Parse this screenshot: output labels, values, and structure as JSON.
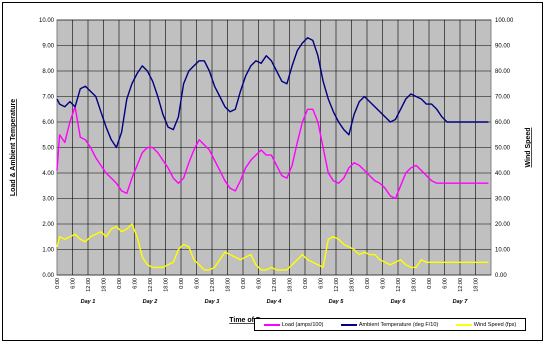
{
  "chart_data": {
    "type": "line",
    "xlabel": "Time of Day",
    "ylabel_left": "Load & Ambient Temperature",
    "ylabel_right": "Wind Speed",
    "ylim_left": [
      0,
      10
    ],
    "ylim_right": [
      0,
      100
    ],
    "left_ticks": [
      "0.00",
      "1.00",
      "2.00",
      "3.00",
      "4.00",
      "5.00",
      "6.00",
      "7.00",
      "8.00",
      "9.00",
      "10.00"
    ],
    "right_ticks": [
      "0.00",
      "10.00",
      "20.00",
      "30.00",
      "40.00",
      "50.00",
      "60.00",
      "70.00",
      "80.00",
      "90.00",
      "100.00"
    ],
    "x_ticks": [
      "0:00",
      "6:00",
      "12:00",
      "18:00",
      "0:00",
      "6:00",
      "12:00",
      "18:00",
      "0:00",
      "6:00",
      "12:00",
      "18:00",
      "0:00",
      "6:00",
      "12:00",
      "18:00",
      "0:00",
      "6:00",
      "12:00",
      "18:00",
      "0:00",
      "6:00",
      "12:00",
      "18:00",
      "0:00",
      "6:00",
      "12:00",
      "18:00"
    ],
    "day_labels": [
      "Day 1",
      "Day 2",
      "Day 3",
      "Day 4",
      "Day 5",
      "Day 6",
      "Day 7"
    ],
    "x_hours_range": [
      0,
      168
    ],
    "grid": true,
    "legend_position": "bottom-right",
    "colors": {
      "plot_bg": "#c0c0c0",
      "grid": "#000000",
      "load": "#ff00ff",
      "temp": "#000080",
      "wind": "#ffff00"
    },
    "series": [
      {
        "name": "Load (amps/100)",
        "axis": "left",
        "color": "#ff00ff",
        "x": [
          0,
          1,
          3,
          5,
          7,
          9,
          11,
          13,
          15,
          17,
          19,
          21,
          23,
          25,
          27,
          29,
          31,
          33,
          35,
          37,
          39,
          41,
          43,
          45,
          47,
          49,
          51,
          53,
          55,
          57,
          59,
          61,
          63,
          65,
          67,
          69,
          71,
          73,
          75,
          77,
          79,
          81,
          83,
          85,
          87,
          89,
          91,
          93,
          95,
          97,
          99,
          101,
          103,
          105,
          107,
          109,
          111,
          113,
          115,
          117,
          119,
          121,
          123,
          125,
          127,
          129,
          131,
          133,
          135,
          137,
          139,
          141,
          143,
          145,
          147,
          149,
          151,
          153,
          155,
          157,
          159,
          161,
          163,
          165,
          167
        ],
        "values": [
          4.1,
          5.5,
          5.2,
          6.0,
          6.6,
          5.4,
          5.3,
          5.0,
          4.6,
          4.3,
          4.0,
          3.8,
          3.6,
          3.3,
          3.2,
          3.8,
          4.3,
          4.8,
          5.0,
          5.0,
          4.8,
          4.5,
          4.2,
          3.8,
          3.6,
          3.8,
          4.4,
          4.9,
          5.3,
          5.1,
          4.9,
          4.5,
          4.1,
          3.7,
          3.4,
          3.3,
          3.7,
          4.2,
          4.5,
          4.7,
          4.9,
          4.7,
          4.7,
          4.3,
          3.9,
          3.8,
          4.3,
          5.2,
          6.0,
          6.5,
          6.5,
          6.0,
          5.0,
          4.0,
          3.7,
          3.6,
          3.8,
          4.2,
          4.4,
          4.3,
          4.1,
          3.9,
          3.7,
          3.6,
          3.4,
          3.1,
          3.0,
          3.5,
          4.0,
          4.2,
          4.3,
          4.1,
          3.9,
          3.7,
          3.6,
          3.6,
          3.6,
          3.6,
          3.6,
          3.6,
          3.6,
          3.6,
          3.6,
          3.6,
          3.6
        ]
      },
      {
        "name": "Ambient Temperature (deg F/10)",
        "axis": "left",
        "color": "#000080",
        "x": [
          0,
          1,
          3,
          5,
          7,
          9,
          11,
          13,
          15,
          17,
          19,
          21,
          23,
          25,
          27,
          29,
          31,
          33,
          35,
          37,
          39,
          41,
          43,
          45,
          47,
          49,
          51,
          53,
          55,
          57,
          59,
          61,
          63,
          65,
          67,
          69,
          71,
          73,
          75,
          77,
          79,
          81,
          83,
          85,
          87,
          89,
          91,
          93,
          95,
          97,
          99,
          101,
          103,
          105,
          107,
          109,
          111,
          113,
          115,
          117,
          119,
          121,
          123,
          125,
          127,
          129,
          131,
          133,
          135,
          137,
          139,
          141,
          143,
          145,
          147,
          149,
          151,
          153,
          155,
          157,
          159,
          161,
          163,
          165,
          167
        ],
        "values": [
          6.9,
          6.7,
          6.6,
          6.8,
          6.6,
          7.3,
          7.4,
          7.2,
          7.0,
          6.4,
          5.8,
          5.3,
          5.0,
          5.6,
          6.9,
          7.5,
          7.9,
          8.2,
          8.0,
          7.6,
          7.0,
          6.3,
          5.8,
          5.7,
          6.2,
          7.5,
          8.0,
          8.2,
          8.4,
          8.4,
          8.0,
          7.4,
          7.0,
          6.6,
          6.4,
          6.5,
          7.2,
          7.8,
          8.2,
          8.4,
          8.3,
          8.6,
          8.4,
          8.0,
          7.6,
          7.5,
          8.2,
          8.8,
          9.1,
          9.3,
          9.2,
          8.6,
          7.6,
          6.9,
          6.4,
          6.0,
          5.7,
          5.5,
          6.3,
          6.8,
          7.0,
          6.8,
          6.6,
          6.4,
          6.2,
          6.0,
          6.1,
          6.5,
          6.9,
          7.1,
          7.0,
          6.9,
          6.7,
          6.7,
          6.5,
          6.2,
          6.0,
          6.0,
          6.0,
          6.0,
          6.0,
          6.0,
          6.0,
          6.0,
          6.0
        ]
      },
      {
        "name": "Wind Speed (fps)",
        "axis": "right",
        "color": "#ffff00",
        "x": [
          0,
          1,
          3,
          5,
          7,
          9,
          11,
          13,
          15,
          17,
          19,
          21,
          23,
          25,
          27,
          29,
          31,
          33,
          35,
          37,
          39,
          41,
          43,
          45,
          47,
          49,
          51,
          53,
          55,
          57,
          59,
          61,
          63,
          65,
          67,
          69,
          71,
          73,
          75,
          77,
          79,
          81,
          83,
          85,
          87,
          89,
          91,
          93,
          95,
          97,
          99,
          101,
          103,
          105,
          107,
          109,
          111,
          113,
          115,
          117,
          119,
          121,
          123,
          125,
          127,
          129,
          131,
          133,
          135,
          137,
          139,
          141,
          143,
          145,
          147,
          149,
          151,
          153,
          155,
          157,
          159,
          161,
          163,
          165,
          167
        ],
        "values": [
          11,
          15,
          14,
          15,
          16,
          14,
          13,
          15,
          16,
          17,
          15,
          18,
          19,
          17,
          18,
          20,
          15,
          7,
          4,
          3,
          3,
          3,
          4,
          5,
          10,
          12,
          11,
          6,
          4,
          2,
          2,
          3,
          6,
          9,
          8,
          7,
          6,
          7,
          8,
          4,
          2,
          2,
          3,
          2,
          2,
          2,
          4,
          6,
          8,
          6,
          5,
          4,
          3,
          14,
          15,
          14,
          12,
          11,
          10,
          8,
          9,
          8,
          8,
          6,
          5,
          4,
          5,
          6,
          4,
          3,
          3,
          6,
          5,
          5,
          5,
          5,
          5,
          5,
          5,
          5,
          5,
          5,
          5,
          5,
          5
        ]
      }
    ]
  }
}
